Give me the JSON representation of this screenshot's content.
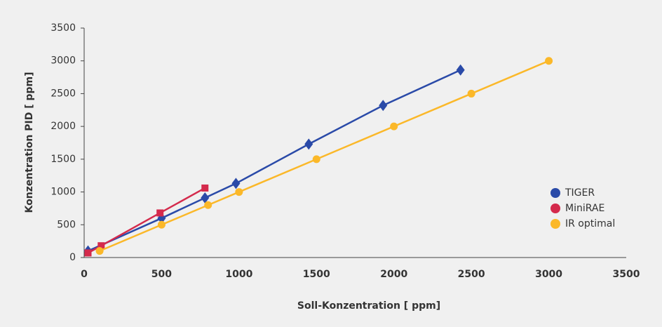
{
  "chart_data": {
    "type": "scatter",
    "x_label": "Soll-Konzentration [ ppm]",
    "y_label": "Konzentration PID [ ppm]",
    "xlim": [
      0,
      3500
    ],
    "ylim": [
      0,
      3500
    ],
    "xticks": [
      0,
      500,
      1000,
      1500,
      2000,
      2500,
      3000,
      3500
    ],
    "yticks": [
      0,
      500,
      1000,
      1500,
      2000,
      2500,
      3000,
      3500
    ],
    "grid": false,
    "legend": "lower right",
    "series": [
      {
        "name": "TIGER",
        "color": "#2a4aa8",
        "marker": "diamond",
        "x": [
          25,
          500,
          780,
          980,
          1450,
          1930,
          2430
        ],
        "values": [
          100,
          600,
          910,
          1130,
          1730,
          2320,
          2860
        ]
      },
      {
        "name": "MiniRAE",
        "color": "#d42a4c",
        "marker": "square",
        "x": [
          25,
          110,
          490,
          780
        ],
        "values": [
          70,
          180,
          680,
          1060
        ]
      },
      {
        "name": "IR optimal",
        "color": "#fbb829",
        "marker": "circle",
        "x": [
          100,
          500,
          800,
          1000,
          1500,
          2000,
          2500,
          3000
        ],
        "values": [
          100,
          500,
          800,
          1000,
          1500,
          2000,
          2500,
          3000
        ]
      }
    ]
  }
}
